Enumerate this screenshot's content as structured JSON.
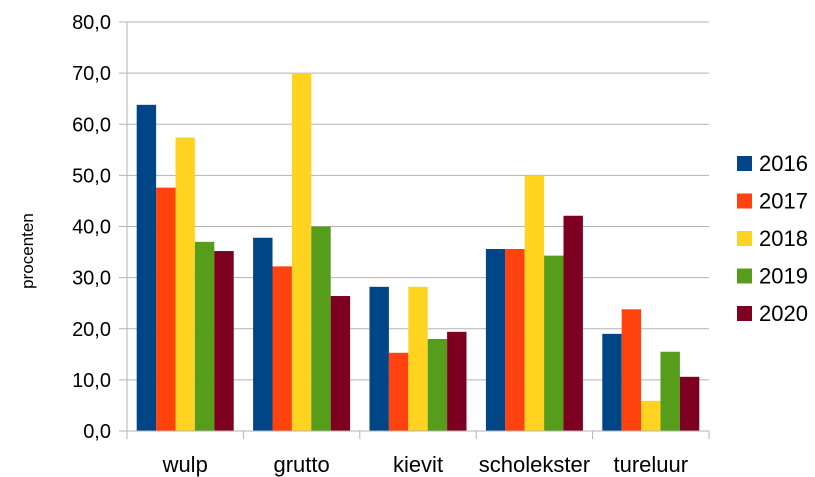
{
  "chart_data": {
    "type": "bar",
    "categories": [
      "wulp",
      "grutto",
      "kievit",
      "scholekster",
      "tureluur"
    ],
    "series": [
      {
        "name": "2016",
        "color": "#004586",
        "values": [
          63.8,
          37.8,
          28.2,
          35.6,
          19.0
        ]
      },
      {
        "name": "2017",
        "color": "#ff420e",
        "values": [
          47.6,
          32.2,
          15.3,
          35.6,
          23.8
        ]
      },
      {
        "name": "2018",
        "color": "#ffd320",
        "values": [
          57.4,
          70.0,
          28.2,
          50.0,
          5.9
        ]
      },
      {
        "name": "2019",
        "color": "#579d1c",
        "values": [
          37.0,
          40.0,
          18.0,
          34.3,
          15.5
        ]
      },
      {
        "name": "2020",
        "color": "#7e0021",
        "values": [
          35.2,
          26.4,
          19.4,
          42.1,
          10.6
        ]
      }
    ],
    "ylabel": "procenten",
    "ylim": [
      0,
      80
    ],
    "yticks": [
      "0,0",
      "10,0",
      "20,0",
      "30,0",
      "40,0",
      "50,0",
      "60,0",
      "70,0",
      "80,0"
    ],
    "grid": true,
    "legend_position": "right"
  }
}
